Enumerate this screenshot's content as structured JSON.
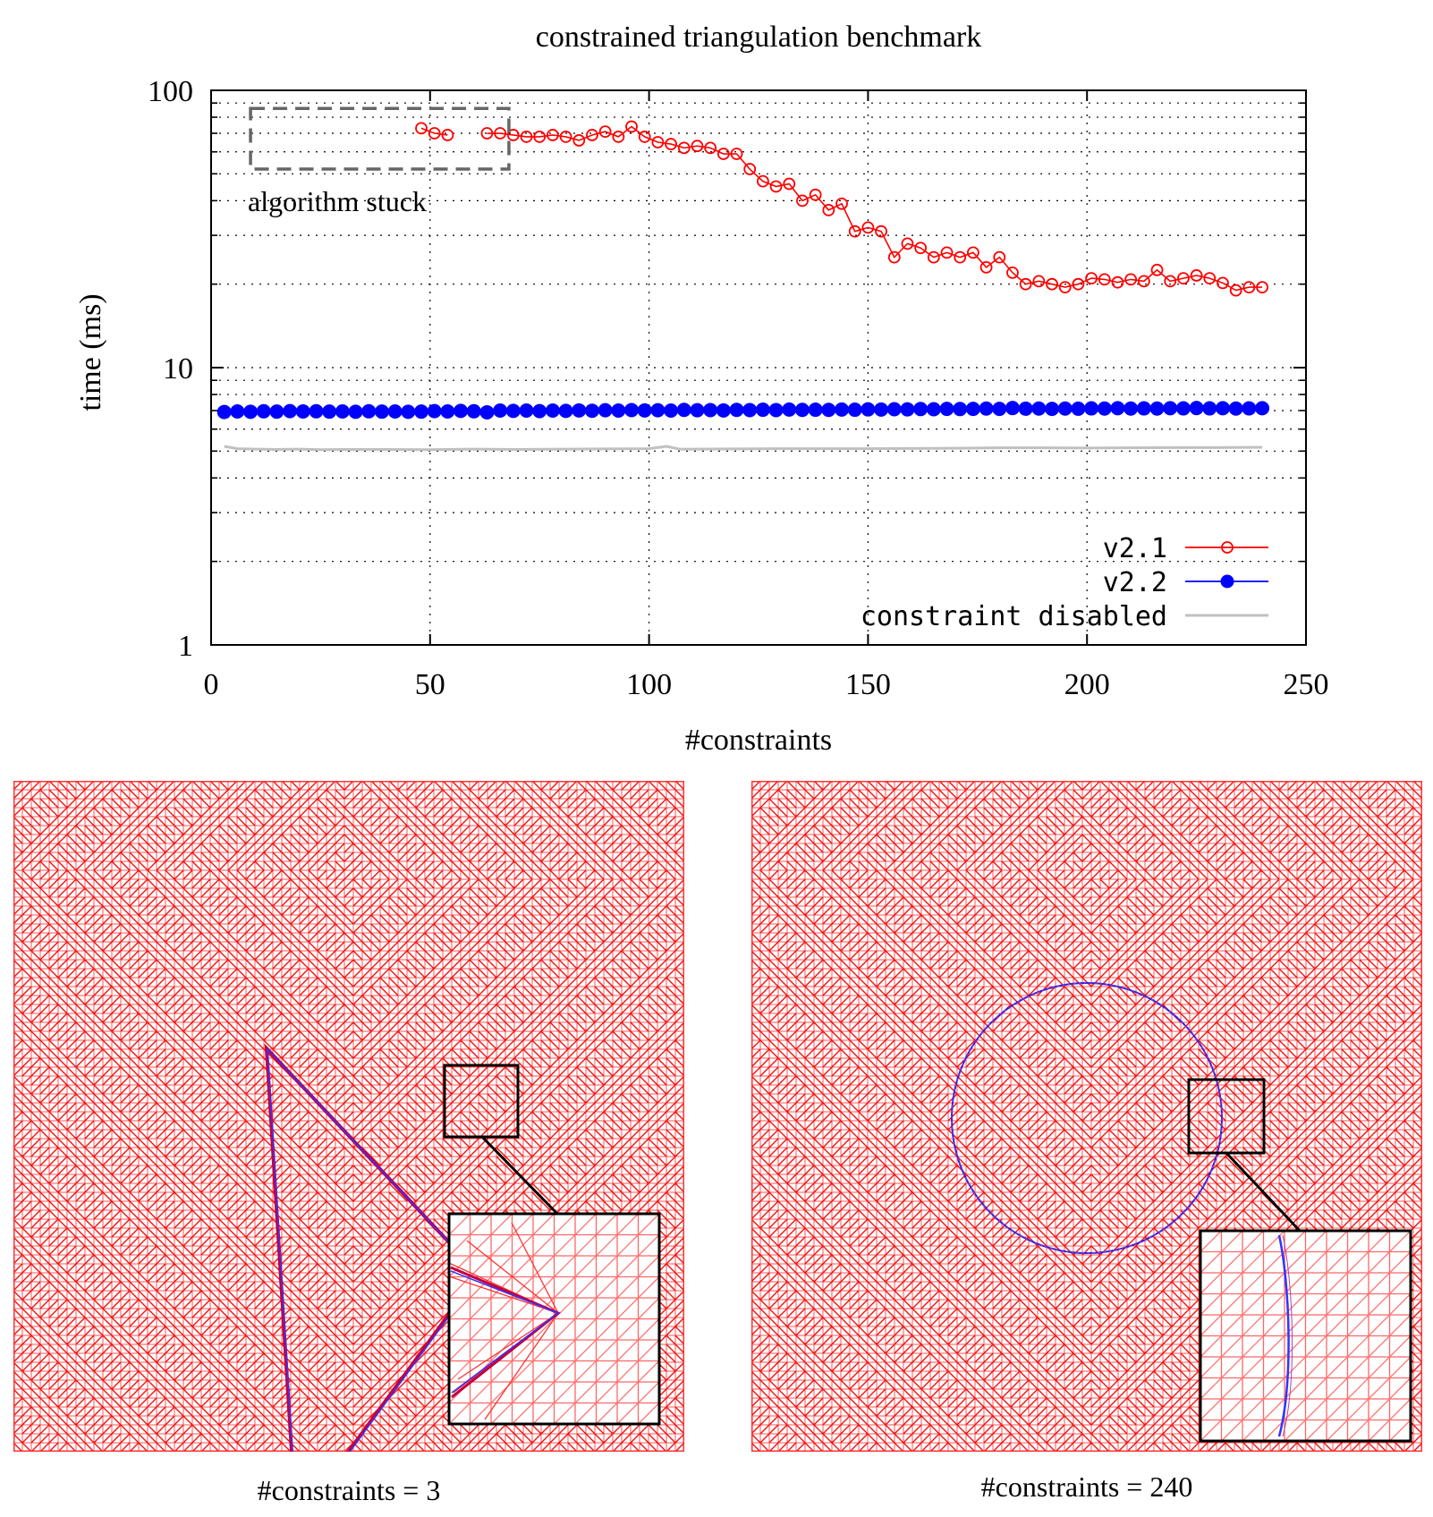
{
  "chart_data": {
    "type": "line",
    "title": "constrained triangulation benchmark",
    "xlabel": "#constraints",
    "ylabel": "time (ms)",
    "xlim": [
      0,
      250
    ],
    "ylim": [
      1,
      100
    ],
    "yscale": "log",
    "xticks": [
      0,
      50,
      100,
      150,
      200,
      250
    ],
    "yticks": [
      1,
      10,
      100
    ],
    "legend_position": "bottom-right",
    "annotation": {
      "text": "algorithm stuck",
      "x_range": [
        9,
        68
      ],
      "y_range": [
        52,
        86
      ]
    },
    "series": [
      {
        "name": "v2.1",
        "color": "#ff0000",
        "marker": "open-circle",
        "x": [
          48,
          51,
          54,
          63,
          66,
          69,
          72,
          75,
          78,
          81,
          84,
          87,
          90,
          93,
          96,
          99,
          102,
          105,
          108,
          111,
          114,
          117,
          120,
          123,
          126,
          129,
          132,
          135,
          138,
          141,
          144,
          147,
          150,
          153,
          156,
          159,
          162,
          165,
          168,
          171,
          174,
          177,
          180,
          183,
          186,
          189,
          192,
          195,
          198,
          201,
          204,
          207,
          210,
          213,
          216,
          219,
          222,
          225,
          228,
          231,
          234,
          237,
          240
        ],
        "y": [
          73,
          70,
          69,
          70,
          70,
          69,
          68,
          68,
          69,
          68,
          66,
          69,
          71,
          68,
          74,
          68,
          65,
          64,
          62,
          63,
          62,
          59,
          59,
          52,
          47,
          45,
          46,
          40,
          42,
          37,
          39,
          31,
          32,
          31,
          25,
          28,
          27,
          25,
          26,
          25,
          26,
          23,
          25,
          22,
          20,
          20.5,
          20,
          19.5,
          20,
          21,
          20.8,
          20.3,
          20.8,
          20.5,
          22.5,
          20.5,
          21,
          21.5,
          21,
          20.2,
          19,
          19.5,
          19.5
        ]
      },
      {
        "name": "v2.2",
        "color": "#0000ff",
        "marker": "filled-circle",
        "x": [
          3,
          6,
          9,
          12,
          15,
          18,
          21,
          24,
          27,
          30,
          33,
          36,
          39,
          42,
          45,
          48,
          51,
          54,
          57,
          60,
          63,
          66,
          69,
          72,
          75,
          78,
          81,
          84,
          87,
          90,
          93,
          96,
          99,
          102,
          105,
          108,
          111,
          114,
          117,
          120,
          123,
          126,
          129,
          132,
          135,
          138,
          141,
          144,
          147,
          150,
          153,
          156,
          159,
          162,
          165,
          168,
          171,
          174,
          177,
          180,
          183,
          186,
          189,
          192,
          195,
          198,
          201,
          204,
          207,
          210,
          213,
          216,
          219,
          222,
          225,
          228,
          231,
          234,
          237,
          240
        ],
        "y": [
          6.92,
          6.95,
          6.93,
          6.96,
          6.94,
          6.97,
          6.95,
          6.96,
          6.94,
          6.95,
          6.93,
          6.96,
          6.94,
          6.95,
          6.93,
          6.94,
          6.97,
          6.95,
          6.98,
          6.96,
          6.9,
          7,
          6.98,
          7,
          6.97,
          7,
          6.98,
          7.01,
          6.99,
          7.02,
          7,
          7.03,
          7.01,
          7.02,
          7,
          7.04,
          7.02,
          7.03,
          7.01,
          7.04,
          7.03,
          7.05,
          7.03,
          7.06,
          7.04,
          7.05,
          7.04,
          7.06,
          7.05,
          7.07,
          7.06,
          7.08,
          7.07,
          7.09,
          7.08,
          7.1,
          7.09,
          7.1,
          7.12,
          7.1,
          7.15,
          7.11,
          7.12,
          7.1,
          7.12,
          7.11,
          7.13,
          7.12,
          7.14,
          7.12,
          7.13,
          7.12,
          7.14,
          7.13,
          7.15,
          7.13,
          7.14,
          7.12,
          7.13,
          7.14
        ]
      },
      {
        "name": "constraint disabled",
        "color": "#c0c0c0",
        "marker": "none",
        "x": [
          3,
          6,
          10,
          15,
          20,
          25,
          30,
          40,
          50,
          60,
          70,
          80,
          90,
          100,
          104,
          107,
          110,
          120,
          130,
          140,
          150,
          160,
          170,
          180,
          190,
          200,
          210,
          220,
          230,
          240
        ],
        "y": [
          5.2,
          5.1,
          5.08,
          5.07,
          5.08,
          5.06,
          5.07,
          5.07,
          5.06,
          5.08,
          5.07,
          5.08,
          5.09,
          5.1,
          5.2,
          5.08,
          5.08,
          5.09,
          5.1,
          5.1,
          5.1,
          5.11,
          5.12,
          5.14,
          5.14,
          5.13,
          5.14,
          5.15,
          5.15,
          5.16
        ]
      }
    ]
  },
  "panels": [
    {
      "caption": "#constraints = 3",
      "shape": "triangle"
    },
    {
      "caption": "#constraints = 240",
      "shape": "circle"
    }
  ]
}
